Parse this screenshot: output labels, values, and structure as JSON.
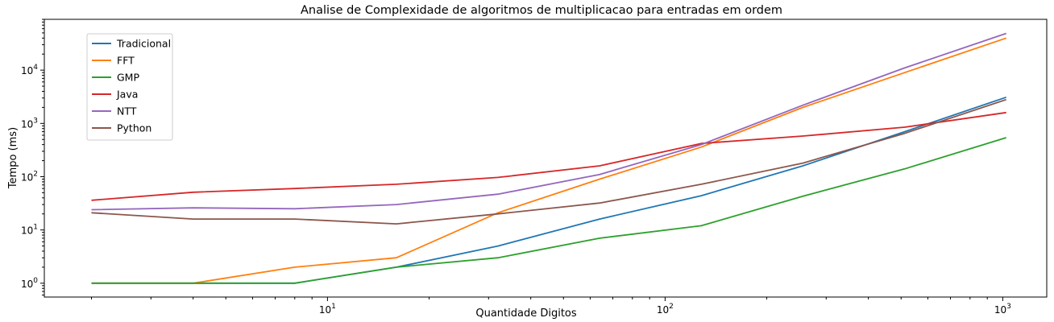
{
  "chart_data": {
    "type": "line",
    "title": "Analise de Complexidade de algoritmos de multiplicacao para entradas em ordem",
    "xlabel": "Quantidade Digitos",
    "ylabel": "Tempo (ms)",
    "xscale": "log",
    "yscale": "log",
    "xlim": [
      1.45,
      1350
    ],
    "ylim": [
      0.55,
      90000
    ],
    "x": [
      2,
      4,
      8,
      16,
      32,
      64,
      128,
      256,
      512,
      1024
    ],
    "x_ticks": [
      10,
      100,
      1000
    ],
    "y_ticks": [
      1,
      10,
      100,
      1000,
      10000
    ],
    "grid": false,
    "legend_position": "upper-left",
    "series": [
      {
        "name": "Tradicional",
        "color": "#1f77b4",
        "values": [
          1,
          1,
          1,
          2,
          5,
          16,
          44,
          160,
          700,
          3100
        ]
      },
      {
        "name": "FFT",
        "color": "#ff7f0e",
        "values": [
          1,
          1,
          2,
          3,
          21,
          90,
          360,
          2000,
          9000,
          40000
        ]
      },
      {
        "name": "GMP",
        "color": "#2ca02c",
        "values": [
          1,
          1,
          1,
          2,
          3,
          7,
          12,
          43,
          140,
          540
        ]
      },
      {
        "name": "Java",
        "color": "#d62728",
        "values": [
          36,
          51,
          60,
          72,
          97,
          160,
          420,
          580,
          850,
          1600
        ]
      },
      {
        "name": "NTT",
        "color": "#9467bd",
        "values": [
          24,
          26,
          25,
          30,
          47,
          110,
          400,
          2200,
          11000,
          49000
        ]
      },
      {
        "name": "Python",
        "color": "#8c564b",
        "values": [
          21,
          16,
          16,
          13,
          20,
          32,
          72,
          180,
          650,
          2800
        ]
      }
    ]
  }
}
